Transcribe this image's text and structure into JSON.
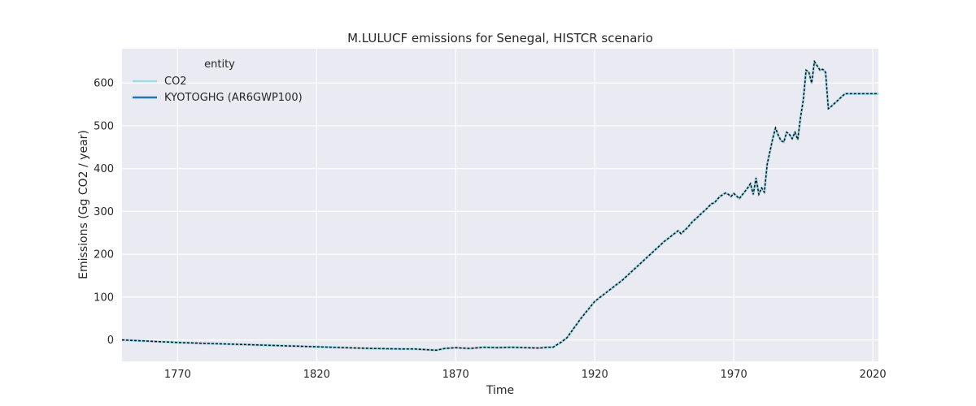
{
  "chart_data": {
    "type": "line",
    "title": "M.LULUCF emissions for Senegal, HISTCR scenario",
    "xlabel": "Time",
    "ylabel": "Emissions (Gg CO2 / year)",
    "xlim": [
      1750,
      2022
    ],
    "ylim": [
      -50,
      680
    ],
    "xticks": [
      1770,
      1820,
      1870,
      1920,
      1970,
      2020
    ],
    "yticks": [
      0,
      100,
      200,
      300,
      400,
      500,
      600
    ],
    "grid": true,
    "legend": {
      "title": "entity",
      "placement": "top-left",
      "entries": [
        "CO2",
        "KYOTOGHG (AR6GWP100)"
      ]
    },
    "x": [
      1750,
      1760,
      1770,
      1780,
      1790,
      1800,
      1810,
      1820,
      1830,
      1840,
      1850,
      1855,
      1860,
      1863,
      1866,
      1870,
      1875,
      1880,
      1885,
      1890,
      1895,
      1900,
      1903,
      1905,
      1908,
      1910,
      1915,
      1920,
      1925,
      1930,
      1935,
      1940,
      1945,
      1950,
      1951,
      1953,
      1955,
      1960,
      1962,
      1963,
      1965,
      1967,
      1968,
      1969,
      1970,
      1972,
      1975,
      1976,
      1977,
      1978,
      1979,
      1980,
      1981,
      1982,
      1983,
      1984,
      1985,
      1986,
      1987,
      1988,
      1989,
      1990,
      1991,
      1992,
      1993,
      1994,
      1995,
      1996,
      1997,
      1998,
      1999,
      2000,
      2001,
      2002,
      2003,
      2004,
      2005,
      2010,
      2015,
      2020,
      2022
    ],
    "series": [
      {
        "name": "CO2",
        "color": "#9fd8e8",
        "values": [
          0,
          -3,
          -6,
          -8,
          -10,
          -12,
          -14,
          -16,
          -18,
          -20,
          -21,
          -21,
          -23,
          -24,
          -20,
          -18,
          -20,
          -17,
          -18,
          -17,
          -18,
          -19,
          -17,
          -17,
          -5,
          5,
          50,
          90,
          115,
          140,
          170,
          200,
          230,
          255,
          248,
          260,
          275,
          305,
          318,
          320,
          335,
          343,
          340,
          335,
          342,
          330,
          355,
          365,
          340,
          378,
          340,
          355,
          345,
          410,
          440,
          470,
          495,
          478,
          465,
          462,
          485,
          480,
          470,
          485,
          468,
          520,
          560,
          630,
          625,
          600,
          650,
          640,
          630,
          632,
          625,
          540,
          545,
          575,
          575,
          575,
          575
        ]
      },
      {
        "name": "KYOTOGHG (AR6GWP100)",
        "color": "#1f77b4",
        "values": [
          0,
          -3,
          -6,
          -8,
          -10,
          -12,
          -14,
          -16,
          -18,
          -20,
          -21,
          -21,
          -23,
          -24,
          -20,
          -18,
          -20,
          -17,
          -18,
          -17,
          -18,
          -19,
          -17,
          -17,
          -5,
          5,
          50,
          90,
          115,
          140,
          170,
          200,
          230,
          255,
          248,
          260,
          275,
          305,
          318,
          320,
          335,
          343,
          340,
          335,
          342,
          330,
          355,
          365,
          340,
          378,
          340,
          355,
          345,
          410,
          440,
          470,
          495,
          478,
          465,
          462,
          485,
          480,
          470,
          485,
          468,
          520,
          560,
          630,
          625,
          600,
          650,
          640,
          630,
          632,
          625,
          540,
          545,
          575,
          575,
          575,
          575
        ]
      }
    ]
  }
}
